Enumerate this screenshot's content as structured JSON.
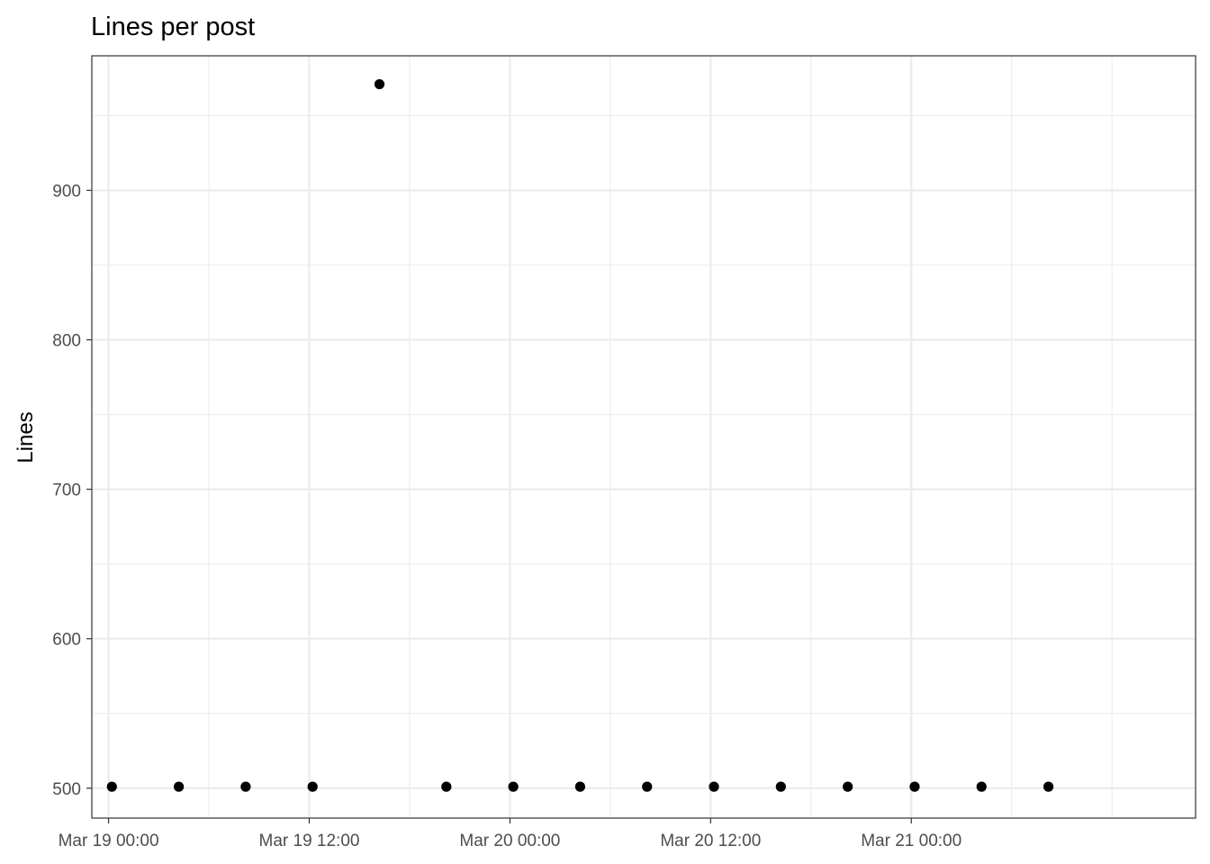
{
  "chart_data": {
    "type": "scatter",
    "title": "Lines per post",
    "xlabel": "",
    "ylabel": "Lines",
    "x_type": "datetime",
    "xlim": [
      "2025-03-18 23:00",
      "2025-03-21 17:00"
    ],
    "ylim": [
      480,
      990
    ],
    "x_ticks": [
      {
        "value": "2025-03-19 00:00",
        "label": "Mar 19 00:00"
      },
      {
        "value": "2025-03-19 12:00",
        "label": "Mar 19 12:00"
      },
      {
        "value": "2025-03-20 00:00",
        "label": "Mar 20 00:00"
      },
      {
        "value": "2025-03-20 12:00",
        "label": "Mar 20 12:00"
      },
      {
        "value": "2025-03-21 00:00",
        "label": "Mar 21 00:00"
      }
    ],
    "y_ticks": [
      500,
      600,
      700,
      800,
      900
    ],
    "grid": true,
    "point_color": "#000000",
    "series": [
      {
        "points": [
          {
            "x": "2025-03-19 00:12",
            "y": 501
          },
          {
            "x": "2025-03-19 04:12",
            "y": 501
          },
          {
            "x": "2025-03-19 08:12",
            "y": 501
          },
          {
            "x": "2025-03-19 12:12",
            "y": 501
          },
          {
            "x": "2025-03-19 16:12",
            "y": 971
          },
          {
            "x": "2025-03-19 20:12",
            "y": 501
          },
          {
            "x": "2025-03-20 00:12",
            "y": 501
          },
          {
            "x": "2025-03-20 04:12",
            "y": 501
          },
          {
            "x": "2025-03-20 08:12",
            "y": 501
          },
          {
            "x": "2025-03-20 12:12",
            "y": 501
          },
          {
            "x": "2025-03-20 16:12",
            "y": 501
          },
          {
            "x": "2025-03-20 20:12",
            "y": 501
          },
          {
            "x": "2025-03-21 00:12",
            "y": 501
          },
          {
            "x": "2025-03-21 04:12",
            "y": 501
          },
          {
            "x": "2025-03-21 08:12",
            "y": 501
          }
        ]
      }
    ]
  }
}
